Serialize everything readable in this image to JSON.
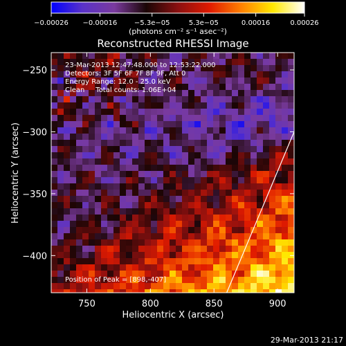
{
  "chart_data": {
    "type": "heatmap",
    "title": "Reconstructed RHESSI Image",
    "xlabel": "Heliocentric X (arcsec)",
    "ylabel": "Heliocentric Y (arcsec)",
    "xlim": [
      722,
      913
    ],
    "ylim": [
      -430,
      -236
    ],
    "xticks": [
      750,
      800,
      850,
      900
    ],
    "yticks": [
      -250,
      -300,
      -350,
      -400
    ],
    "xtick_labels": [
      "750",
      "800",
      "850",
      "900"
    ],
    "ytick_labels": [
      "−250",
      "−300",
      "−350",
      "−400"
    ],
    "colorbar": {
      "range": [
        -0.00026,
        0.00026
      ],
      "tick_values": [
        -0.00026,
        -0.00016,
        -5.3e-05,
        5.3e-05,
        0.00016,
        0.00026
      ],
      "tick_labels": [
        "−0.00026",
        "−0.00016",
        "−5.3e−05",
        "5.3e−05",
        "0.00016",
        "0.00026"
      ],
      "unit_label": "(photons cm⁻² s⁻¹ asec⁻²)",
      "colors": [
        "#0000ff",
        "#5a32c8",
        "#7a3a9e",
        "#1a0505",
        "#8a1010",
        "#e01a00",
        "#ff8000",
        "#ffe800",
        "#ffffff"
      ]
    },
    "info_lines": [
      "23-Mar-2013 12:47:48.000 to 12:53:22.000",
      "Detectors: 3F 5F 6F 7F 8F 9F, Att 0",
      "Energy Range: 12.0 - 25.0 keV",
      "Clean     Total counts: 1.06E+04"
    ],
    "peak_label": "Position of Peak = [898,-407]",
    "peak_position": [
      898,
      -407
    ],
    "limb_line": [
      [
        913,
        -300
      ],
      [
        860,
        -430
      ]
    ]
  },
  "timestamp": "29-Mar-2013 21:17"
}
